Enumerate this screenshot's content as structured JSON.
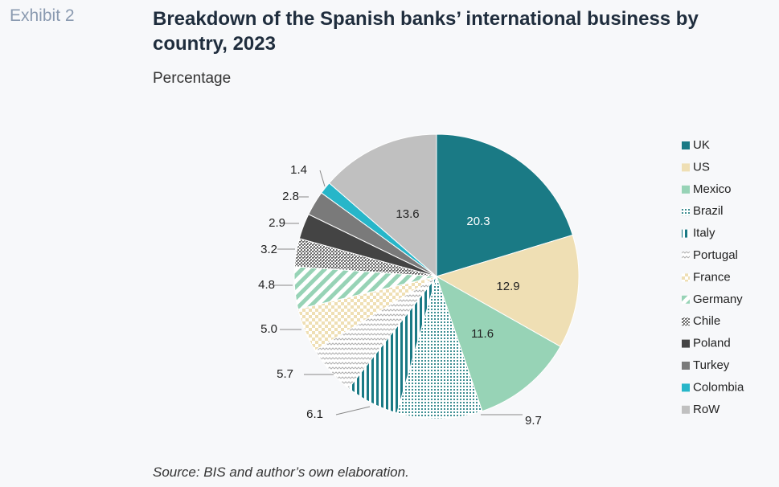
{
  "header": {
    "exhibit": "Exhibit 2",
    "title": "Breakdown of the Spanish banks’ international business by country, 2023",
    "subtitle": "Percentage"
  },
  "footer": {
    "source": "Source: BIS and author’s own elaboration."
  },
  "chart_data": {
    "type": "pie",
    "title": "Breakdown of the Spanish banks’ international business by country, 2023",
    "subtitle": "Percentage",
    "legend_position": "right",
    "start": "12 o'clock",
    "direction": "clockwise",
    "slices": [
      {
        "label": "UK",
        "value": 20.3,
        "color": "#1a7a85",
        "pattern": "solid"
      },
      {
        "label": "US",
        "value": 12.9,
        "color": "#efdfb4",
        "pattern": "solid"
      },
      {
        "label": "Mexico",
        "value": 11.6,
        "color": "#97d3b6",
        "pattern": "solid"
      },
      {
        "label": "Brazil",
        "value": 9.7,
        "color": "#3d8e92",
        "pattern": "dots"
      },
      {
        "label": "Italy",
        "value": 6.1,
        "color": "#1a7a85",
        "pattern": "vertical-stripes"
      },
      {
        "label": "Portugal",
        "value": 5.7,
        "color": "#b8b8b8",
        "pattern": "waves"
      },
      {
        "label": "France",
        "value": 5.0,
        "color": "#efdfb4",
        "pattern": "checker"
      },
      {
        "label": "Germany",
        "value": 4.8,
        "color": "#97d3b6",
        "pattern": "diagonal-stripes"
      },
      {
        "label": "Chile",
        "value": 3.2,
        "color": "#6f6f6f",
        "pattern": "crosshatch"
      },
      {
        "label": "Poland",
        "value": 2.9,
        "color": "#444444",
        "pattern": "solid"
      },
      {
        "label": "Turkey",
        "value": 2.8,
        "color": "#7a7a7a",
        "pattern": "solid"
      },
      {
        "label": "Colombia",
        "value": 1.4,
        "color": "#27b6c9",
        "pattern": "solid"
      },
      {
        "label": "RoW",
        "value": 13.6,
        "color": "#c0c0c0",
        "pattern": "solid"
      }
    ]
  }
}
